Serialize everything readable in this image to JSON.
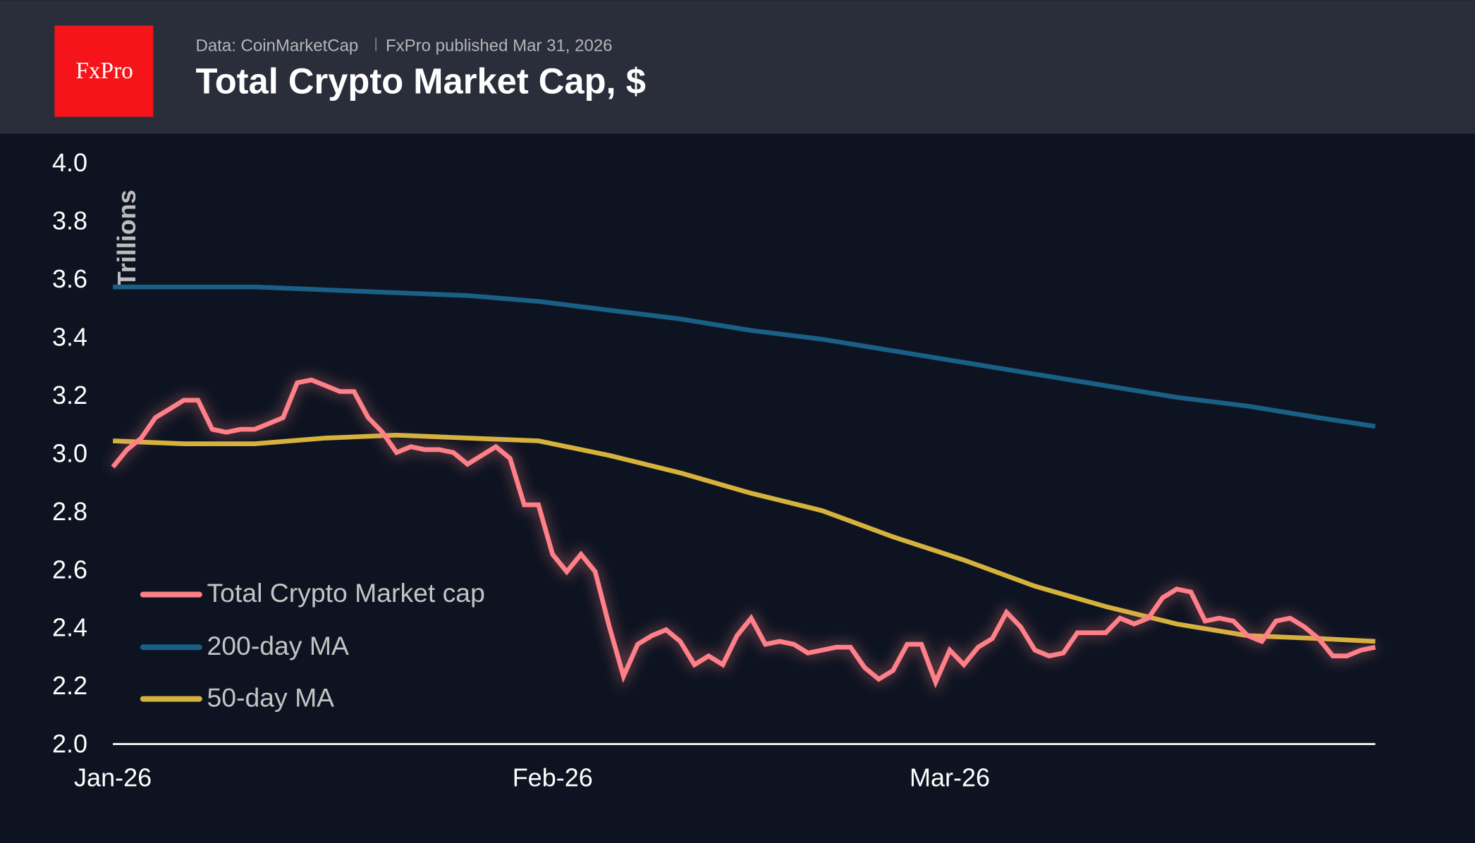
{
  "header": {
    "logo_text": "FxPro",
    "source": "Data: CoinMarketCap",
    "published": "FxPro published Mar 31, 2026",
    "title": "Total Crypto Market Cap, $"
  },
  "colors": {
    "header_bg": "#2a2d3a",
    "plot_bg": "#0d1321",
    "logo": "#f5141a",
    "total": "#ff8088",
    "ma200": "#1a5f85",
    "ma50": "#d6b23c"
  },
  "chart_data": {
    "type": "line",
    "title": "Total Crypto Market Cap, $",
    "ylabel": "Trillions",
    "ylim": [
      2.0,
      4.0
    ],
    "yticks": [
      "2.0",
      "2.2",
      "2.4",
      "2.6",
      "2.8",
      "3.0",
      "3.2",
      "3.4",
      "3.6",
      "3.8",
      "4.0"
    ],
    "xlim": [
      "2026-01-01",
      "2026-03-31"
    ],
    "xticks": [
      {
        "date": "2026-01-01",
        "label": "Jan-26"
      },
      {
        "date": "2026-02-01",
        "label": "Feb-26"
      },
      {
        "date": "2026-03-01",
        "label": "Mar-26"
      }
    ],
    "grid": false,
    "legend_position": "bottom-left",
    "series": [
      {
        "name": "Total Crypto Market cap",
        "color": "#ff8088",
        "points": [
          [
            "2026-01-01",
            2.95
          ],
          [
            "2026-01-02",
            3.01
          ],
          [
            "2026-01-03",
            3.05
          ],
          [
            "2026-01-04",
            3.12
          ],
          [
            "2026-01-05",
            3.15
          ],
          [
            "2026-01-06",
            3.18
          ],
          [
            "2026-01-07",
            3.18
          ],
          [
            "2026-01-08",
            3.08
          ],
          [
            "2026-01-09",
            3.07
          ],
          [
            "2026-01-10",
            3.08
          ],
          [
            "2026-01-11",
            3.08
          ],
          [
            "2026-01-12",
            3.1
          ],
          [
            "2026-01-13",
            3.12
          ],
          [
            "2026-01-14",
            3.24
          ],
          [
            "2026-01-15",
            3.25
          ],
          [
            "2026-01-16",
            3.23
          ],
          [
            "2026-01-17",
            3.21
          ],
          [
            "2026-01-18",
            3.21
          ],
          [
            "2026-01-19",
            3.12
          ],
          [
            "2026-01-20",
            3.07
          ],
          [
            "2026-01-21",
            3.0
          ],
          [
            "2026-01-22",
            3.02
          ],
          [
            "2026-01-23",
            3.01
          ],
          [
            "2026-01-24",
            3.01
          ],
          [
            "2026-01-25",
            3.0
          ],
          [
            "2026-01-26",
            2.96
          ],
          [
            "2026-01-27",
            2.99
          ],
          [
            "2026-01-28",
            3.02
          ],
          [
            "2026-01-29",
            2.98
          ],
          [
            "2026-01-30",
            2.82
          ],
          [
            "2026-01-31",
            2.82
          ],
          [
            "2026-02-01",
            2.65
          ],
          [
            "2026-02-02",
            2.59
          ],
          [
            "2026-02-03",
            2.65
          ],
          [
            "2026-02-04",
            2.59
          ],
          [
            "2026-02-05",
            2.4
          ],
          [
            "2026-02-06",
            2.23
          ],
          [
            "2026-02-07",
            2.34
          ],
          [
            "2026-02-08",
            2.37
          ],
          [
            "2026-02-09",
            2.39
          ],
          [
            "2026-02-10",
            2.35
          ],
          [
            "2026-02-11",
            2.27
          ],
          [
            "2026-02-12",
            2.3
          ],
          [
            "2026-02-13",
            2.27
          ],
          [
            "2026-02-14",
            2.37
          ],
          [
            "2026-02-15",
            2.43
          ],
          [
            "2026-02-16",
            2.34
          ],
          [
            "2026-02-17",
            2.35
          ],
          [
            "2026-02-18",
            2.34
          ],
          [
            "2026-02-19",
            2.31
          ],
          [
            "2026-02-20",
            2.32
          ],
          [
            "2026-02-21",
            2.33
          ],
          [
            "2026-02-22",
            2.33
          ],
          [
            "2026-02-23",
            2.26
          ],
          [
            "2026-02-24",
            2.22
          ],
          [
            "2026-02-25",
            2.25
          ],
          [
            "2026-02-26",
            2.34
          ],
          [
            "2026-02-27",
            2.34
          ],
          [
            "2026-02-28",
            2.21
          ],
          [
            "2026-03-01",
            2.32
          ],
          [
            "2026-03-02",
            2.27
          ],
          [
            "2026-03-03",
            2.33
          ],
          [
            "2026-03-04",
            2.36
          ],
          [
            "2026-03-05",
            2.45
          ],
          [
            "2026-03-06",
            2.4
          ],
          [
            "2026-03-07",
            2.32
          ],
          [
            "2026-03-08",
            2.3
          ],
          [
            "2026-03-09",
            2.31
          ],
          [
            "2026-03-10",
            2.38
          ],
          [
            "2026-03-11",
            2.38
          ],
          [
            "2026-03-12",
            2.38
          ],
          [
            "2026-03-13",
            2.43
          ],
          [
            "2026-03-14",
            2.41
          ],
          [
            "2026-03-15",
            2.43
          ],
          [
            "2026-03-16",
            2.5
          ],
          [
            "2026-03-17",
            2.53
          ],
          [
            "2026-03-18",
            2.52
          ],
          [
            "2026-03-19",
            2.42
          ],
          [
            "2026-03-20",
            2.43
          ],
          [
            "2026-03-21",
            2.42
          ],
          [
            "2026-03-22",
            2.37
          ],
          [
            "2026-03-23",
            2.35
          ],
          [
            "2026-03-24",
            2.42
          ],
          [
            "2026-03-25",
            2.43
          ],
          [
            "2026-03-26",
            2.4
          ],
          [
            "2026-03-27",
            2.36
          ],
          [
            "2026-03-28",
            2.3
          ],
          [
            "2026-03-29",
            2.3
          ],
          [
            "2026-03-30",
            2.32
          ],
          [
            "2026-03-31",
            2.33
          ]
        ]
      },
      {
        "name": "200-day MA",
        "color": "#1a5f85",
        "points": [
          [
            "2026-01-01",
            3.57
          ],
          [
            "2026-01-06",
            3.57
          ],
          [
            "2026-01-11",
            3.57
          ],
          [
            "2026-01-16",
            3.56
          ],
          [
            "2026-01-21",
            3.55
          ],
          [
            "2026-01-26",
            3.54
          ],
          [
            "2026-01-31",
            3.52
          ],
          [
            "2026-02-05",
            3.49
          ],
          [
            "2026-02-10",
            3.46
          ],
          [
            "2026-02-15",
            3.42
          ],
          [
            "2026-02-20",
            3.39
          ],
          [
            "2026-02-25",
            3.35
          ],
          [
            "2026-03-02",
            3.31
          ],
          [
            "2026-03-07",
            3.27
          ],
          [
            "2026-03-12",
            3.23
          ],
          [
            "2026-03-17",
            3.19
          ],
          [
            "2026-03-22",
            3.16
          ],
          [
            "2026-03-27",
            3.12
          ],
          [
            "2026-03-31",
            3.09
          ]
        ]
      },
      {
        "name": "50-day MA",
        "color": "#d6b23c",
        "points": [
          [
            "2026-01-01",
            3.04
          ],
          [
            "2026-01-06",
            3.03
          ],
          [
            "2026-01-11",
            3.03
          ],
          [
            "2026-01-16",
            3.05
          ],
          [
            "2026-01-21",
            3.06
          ],
          [
            "2026-01-26",
            3.05
          ],
          [
            "2026-01-31",
            3.04
          ],
          [
            "2026-02-05",
            2.99
          ],
          [
            "2026-02-10",
            2.93
          ],
          [
            "2026-02-15",
            2.86
          ],
          [
            "2026-02-20",
            2.8
          ],
          [
            "2026-02-25",
            2.71
          ],
          [
            "2026-03-02",
            2.63
          ],
          [
            "2026-03-07",
            2.54
          ],
          [
            "2026-03-12",
            2.47
          ],
          [
            "2026-03-17",
            2.41
          ],
          [
            "2026-03-22",
            2.37
          ],
          [
            "2026-03-27",
            2.36
          ],
          [
            "2026-03-31",
            2.35
          ]
        ]
      }
    ]
  }
}
